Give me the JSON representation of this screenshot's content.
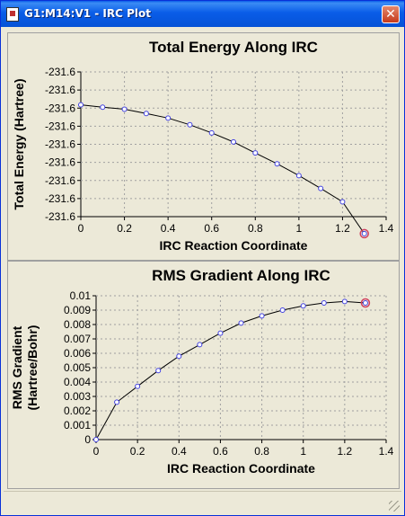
{
  "window": {
    "title": "G1:M14:V1 - IRC Plot",
    "close_glyph": "✕"
  },
  "colors": {
    "line": "#000000",
    "point": "#4040e0",
    "highlight": "#d04060",
    "grid": "#a0a0a0"
  },
  "chart_data": [
    {
      "type": "line",
      "title": "Total Energy Along IRC",
      "xlabel": "IRC Reaction Coordinate",
      "ylabel": "Total Energy (Hartree)",
      "xlim": [
        0,
        1.4
      ],
      "xticks": [
        "0",
        "0.2",
        "0.4",
        "0.6",
        "0.8",
        "1",
        "1.2",
        "1.4"
      ],
      "yticks": [
        "-231.6",
        "-231.6",
        "-231.6",
        "-231.6",
        "-231.6",
        "-231.6",
        "-231.6",
        "-231.6",
        "-231.6"
      ],
      "ylim": [
        0,
        8
      ],
      "grid": true,
      "x": [
        0,
        0.1,
        0.2,
        0.3,
        0.4,
        0.5,
        0.6,
        0.7,
        0.8,
        0.9,
        1.0,
        1.1,
        1.2,
        1.3
      ],
      "y": [
        6.18,
        6.05,
        5.94,
        5.7,
        5.45,
        5.08,
        4.63,
        4.13,
        3.52,
        2.92,
        2.27,
        1.56,
        0.82,
        -0.94
      ],
      "highlight_index": 13
    },
    {
      "type": "line",
      "title": "RMS Gradient Along IRC",
      "xlabel": "IRC Reaction Coordinate",
      "ylabel": [
        "RMS Gradient",
        "(Hartree/Bohr)"
      ],
      "xlim": [
        0,
        1.4
      ],
      "xticks": [
        "0",
        "0.2",
        "0.4",
        "0.6",
        "0.8",
        "1",
        "1.2",
        "1.4"
      ],
      "yticks": [
        "0",
        "0.001",
        "0.002",
        "0.003",
        "0.004",
        "0.005",
        "0.006",
        "0.007",
        "0.008",
        "0.009",
        "0.01"
      ],
      "ylim": [
        0,
        0.01
      ],
      "grid": true,
      "x": [
        0,
        0.1,
        0.2,
        0.3,
        0.4,
        0.5,
        0.6,
        0.7,
        0.8,
        0.9,
        1.0,
        1.1,
        1.2,
        1.3
      ],
      "y": [
        0.0,
        0.0026,
        0.0037,
        0.0048,
        0.0058,
        0.0066,
        0.0074,
        0.0081,
        0.0086,
        0.009,
        0.0093,
        0.0095,
        0.0096,
        0.0095
      ],
      "highlight_index": 13
    }
  ]
}
